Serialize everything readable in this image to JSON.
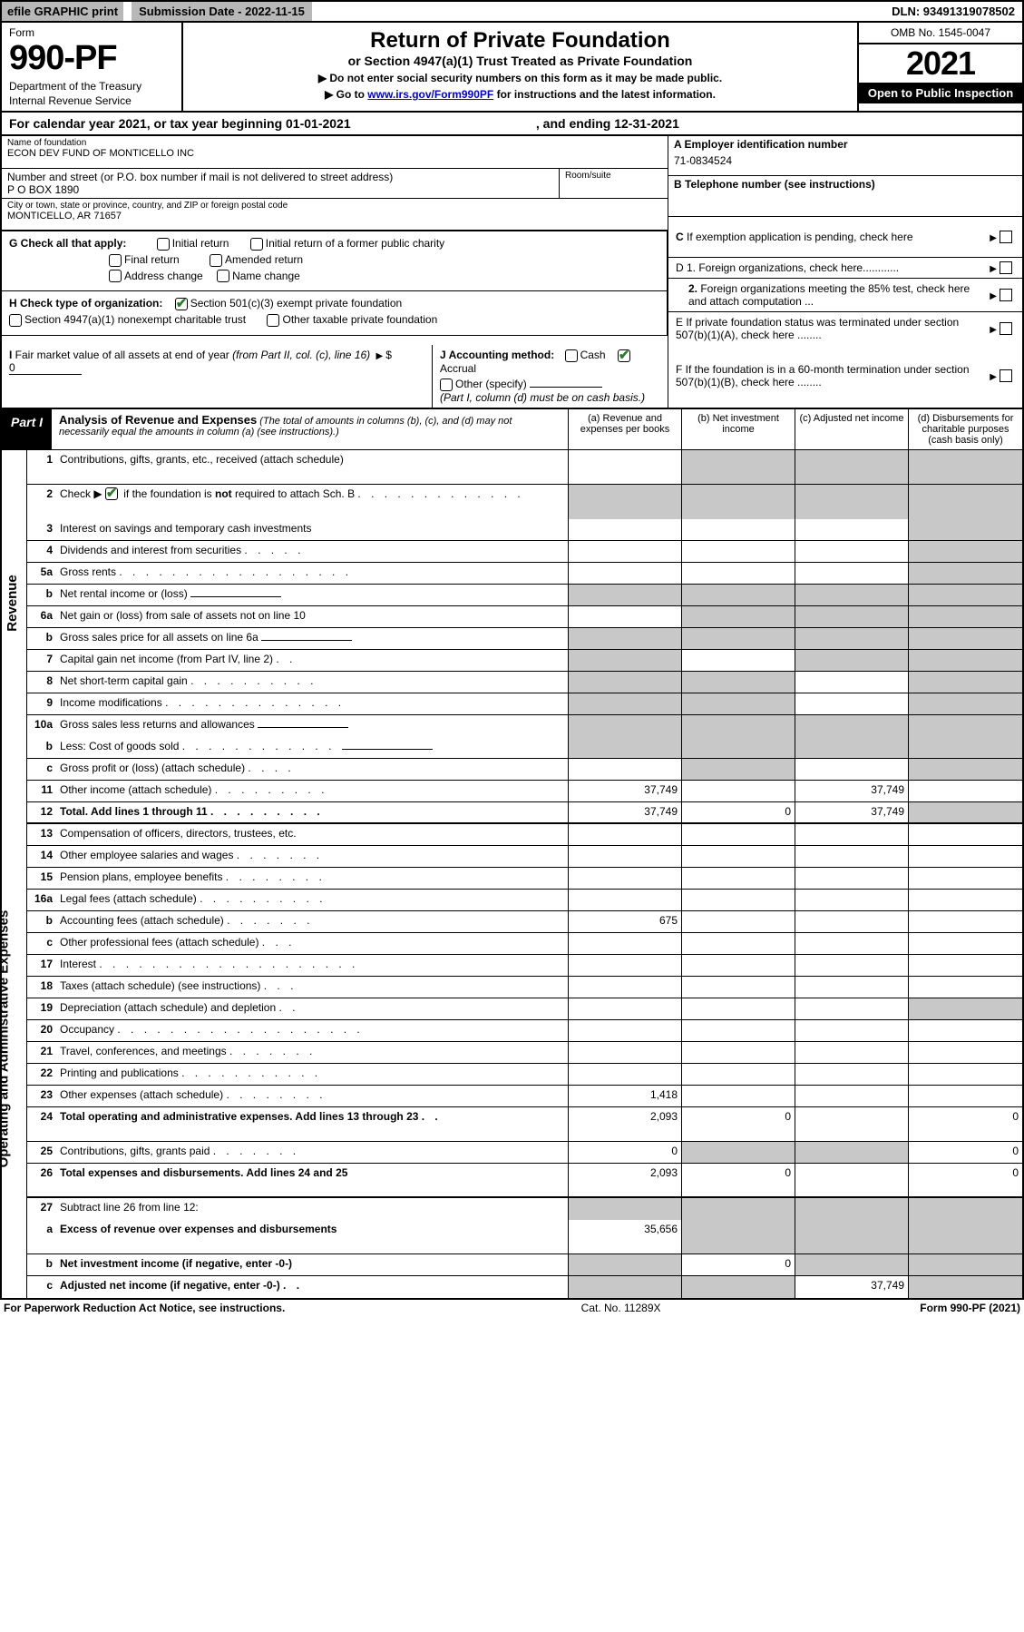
{
  "top": {
    "efile": "efile GRAPHIC print",
    "submission": "Submission Date - 2022-11-15",
    "dln": "DLN: 93491319078502"
  },
  "header": {
    "form": "Form",
    "number": "990-PF",
    "dept": "Department of the Treasury",
    "irs": "Internal Revenue Service",
    "title": "Return of Private Foundation",
    "subtitle": "or Section 4947(a)(1) Trust Treated as Private Foundation",
    "instr1": "▶ Do not enter social security numbers on this form as it may be made public.",
    "instr2_pre": "▶ Go to ",
    "instr2_link": "www.irs.gov/Form990PF",
    "instr2_post": " for instructions and the latest information.",
    "omb": "OMB No. 1545-0047",
    "year": "2021",
    "open": "Open to Public Inspection"
  },
  "cal": {
    "beg": "For calendar year 2021, or tax year beginning 01-01-2021",
    "end": ", and ending 12-31-2021"
  },
  "id": {
    "name_lbl": "Name of foundation",
    "name": "ECON DEV FUND OF MONTICELLO INC",
    "addr_lbl": "Number and street (or P.O. box number if mail is not delivered to street address)",
    "addr": "P O BOX 1890",
    "room_lbl": "Room/suite",
    "city_lbl": "City or town, state or province, country, and ZIP or foreign postal code",
    "city": "MONTICELLO, AR  71657",
    "a_lbl": "A Employer identification number",
    "a_val": "71-0834524",
    "b_lbl": "B Telephone number (see instructions)",
    "c_lbl": "C If exemption application is pending, check here",
    "d1": "D 1. Foreign organizations, check here............",
    "d2": "2. Foreign organizations meeting the 85% test, check here and attach computation ...",
    "e": "E  If private foundation status was terminated under section 507(b)(1)(A), check here ........",
    "f": "F  If the foundation is in a 60-month termination under section 507(b)(1)(B), check here ........"
  },
  "g": {
    "lbl": "G Check all that apply:",
    "opts": [
      "Initial return",
      "Initial return of a former public charity",
      "Final return",
      "Amended return",
      "Address change",
      "Name change"
    ]
  },
  "h": {
    "lbl": "H Check type of organization:",
    "o1": "Section 501(c)(3) exempt private foundation",
    "o2": "Section 4947(a)(1) nonexempt charitable trust",
    "o3": "Other taxable private foundation"
  },
  "i": {
    "lbl": "I Fair market value of all assets at end of year (from Part II, col. (c), line 16)",
    "val": "0"
  },
  "j": {
    "lbl": "J Accounting method:",
    "cash": "Cash",
    "accrual": "Accrual",
    "other": "Other (specify)",
    "note": "(Part I, column (d) must be on cash basis.)"
  },
  "part1": {
    "lbl": "Part I",
    "title": "Analysis of Revenue and Expenses",
    "note": " (The total of amounts in columns (b), (c), and (d) may not necessarily equal the amounts in column (a) (see instructions).)",
    "cols": [
      "(a)  Revenue and expenses per books",
      "(b)  Net investment income",
      "(c)  Adjusted net income",
      "(d)  Disbursements for charitable purposes (cash basis only)"
    ]
  },
  "side": {
    "rev": "Revenue",
    "exp": "Operating and Administrative Expenses"
  },
  "rows": [
    {
      "n": "1",
      "d": "Contributions, gifts, grants, etc., received (attach schedule)",
      "g": [
        0,
        1,
        1,
        1
      ],
      "tall": 1
    },
    {
      "n": "2",
      "d": "Check ▶ ☑ if the foundation is not required to attach Sch. B",
      "g": [
        1,
        1,
        1,
        1
      ],
      "nb": 1,
      "dots": 1,
      "tall": 1,
      "checkbox": 1
    },
    {
      "n": "3",
      "d": "Interest on savings and temporary cash investments",
      "g": [
        0,
        0,
        0,
        1
      ]
    },
    {
      "n": "4",
      "d": "Dividends and interest from securities",
      "g": [
        0,
        0,
        0,
        1
      ],
      "dots": 1
    },
    {
      "n": "5a",
      "d": "Gross rents",
      "g": [
        0,
        0,
        0,
        1
      ],
      "dots": 1
    },
    {
      "n": "b",
      "d": "Net rental income or (loss)",
      "g": [
        1,
        1,
        1,
        1
      ],
      "sub": 1
    },
    {
      "n": "6a",
      "d": "Net gain or (loss) from sale of assets not on line 10",
      "g": [
        0,
        1,
        1,
        1
      ]
    },
    {
      "n": "b",
      "d": "Gross sales price for all assets on line 6a",
      "g": [
        1,
        1,
        1,
        1
      ],
      "sub": 1
    },
    {
      "n": "7",
      "d": "Capital gain net income (from Part IV, line 2)",
      "g": [
        1,
        0,
        1,
        1
      ],
      "dots": 1
    },
    {
      "n": "8",
      "d": "Net short-term capital gain",
      "g": [
        1,
        1,
        0,
        1
      ],
      "dots": 1
    },
    {
      "n": "9",
      "d": "Income modifications",
      "g": [
        1,
        1,
        0,
        1
      ],
      "dots": 1
    },
    {
      "n": "10a",
      "d": "Gross sales less returns and allowances",
      "g": [
        1,
        1,
        1,
        1
      ],
      "sub": 1,
      "nb": 1
    },
    {
      "n": "b",
      "d": "Less: Cost of goods sold",
      "g": [
        1,
        1,
        1,
        1
      ],
      "sub": 1,
      "dots": 1
    },
    {
      "n": "c",
      "d": "Gross profit or (loss) (attach schedule)",
      "g": [
        0,
        1,
        0,
        1
      ],
      "dots": 1
    },
    {
      "n": "11",
      "d": "Other income (attach schedule)",
      "a": "37,749",
      "c": "37,749",
      "dots": 1
    },
    {
      "n": "12",
      "d": "Total. Add lines 1 through 11",
      "a": "37,749",
      "b": "0",
      "c": "37,749",
      "g": [
        0,
        0,
        0,
        1
      ],
      "bold": 1,
      "dots": 1,
      "sect": 1
    },
    {
      "n": "13",
      "d": "Compensation of officers, directors, trustees, etc."
    },
    {
      "n": "14",
      "d": "Other employee salaries and wages",
      "dots": 1
    },
    {
      "n": "15",
      "d": "Pension plans, employee benefits",
      "dots": 1
    },
    {
      "n": "16a",
      "d": "Legal fees (attach schedule)",
      "dots": 1
    },
    {
      "n": "b",
      "d": "Accounting fees (attach schedule)",
      "a": "675",
      "dots": 1
    },
    {
      "n": "c",
      "d": "Other professional fees (attach schedule)",
      "dots": 1
    },
    {
      "n": "17",
      "d": "Interest",
      "dots": 1
    },
    {
      "n": "18",
      "d": "Taxes (attach schedule) (see instructions)",
      "dots": 1
    },
    {
      "n": "19",
      "d": "Depreciation (attach schedule) and depletion",
      "g": [
        0,
        0,
        0,
        1
      ],
      "dots": 1
    },
    {
      "n": "20",
      "d": "Occupancy",
      "dots": 1
    },
    {
      "n": "21",
      "d": "Travel, conferences, and meetings",
      "dots": 1
    },
    {
      "n": "22",
      "d": "Printing and publications",
      "dots": 1
    },
    {
      "n": "23",
      "d": "Other expenses (attach schedule)",
      "a": "1,418",
      "dots": 1
    },
    {
      "n": "24",
      "d": "Total operating and administrative expenses. Add lines 13 through 23",
      "a": "2,093",
      "b": "0",
      "dval": "0",
      "bold": 1,
      "dots": 1,
      "tall": 1
    },
    {
      "n": "25",
      "d": "Contributions, gifts, grants paid",
      "a": "0",
      "dval": "0",
      "g": [
        0,
        1,
        1,
        0
      ],
      "dots": 1
    },
    {
      "n": "26",
      "d": "Total expenses and disbursements. Add lines 24 and 25",
      "a": "2,093",
      "b": "0",
      "dval": "0",
      "bold": 1,
      "tall": 1,
      "sect": 1
    },
    {
      "n": "27",
      "d": "Subtract line 26 from line 12:",
      "g": [
        1,
        1,
        1,
        1
      ],
      "nb": 1
    },
    {
      "n": "a",
      "d": "Excess of revenue over expenses and disbursements",
      "a": "35,656",
      "g": [
        0,
        1,
        1,
        1
      ],
      "bold": 1,
      "tall": 1
    },
    {
      "n": "b",
      "d": "Net investment income (if negative, enter -0-)",
      "b": "0",
      "g": [
        1,
        0,
        1,
        1
      ],
      "bold": 1
    },
    {
      "n": "c",
      "d": "Adjusted net income (if negative, enter -0-)",
      "c": "37,749",
      "g": [
        1,
        1,
        0,
        1
      ],
      "bold": 1,
      "dots": 1
    }
  ],
  "footer": {
    "l": "For Paperwork Reduction Act Notice, see instructions.",
    "m": "Cat. No. 11289X",
    "r": "Form 990-PF (2021)"
  }
}
